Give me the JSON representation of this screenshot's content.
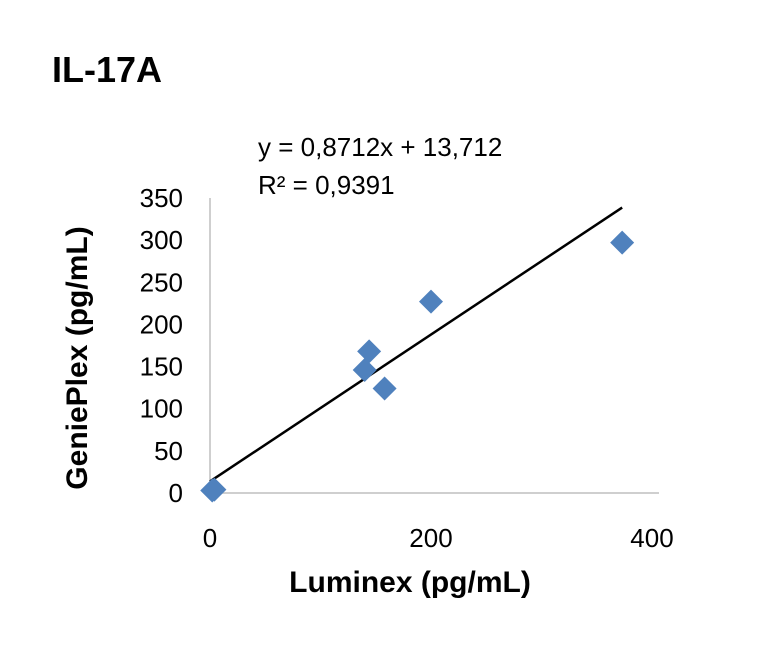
{
  "chart_data": {
    "type": "scatter",
    "title": "IL-17A",
    "xlabel": "Luminex  (pg/mL)",
    "ylabel": "GeniePlex  (pg/mL)",
    "xlim": [
      0,
      400
    ],
    "ylim": [
      0,
      350
    ],
    "xticks": [
      "0",
      "200",
      "400"
    ],
    "yticks": [
      "0",
      "50",
      "100",
      "150",
      "200",
      "250",
      "300",
      "350"
    ],
    "grid": false,
    "legend": "none",
    "series": [
      {
        "marker": "diamond",
        "color": "#4F81BD",
        "points": [
          {
            "x": 2,
            "y": 3
          },
          {
            "x": 4,
            "y": 4
          },
          {
            "x": 140,
            "y": 146
          },
          {
            "x": 144,
            "y": 168
          },
          {
            "x": 158,
            "y": 124
          },
          {
            "x": 200,
            "y": 227
          },
          {
            "x": 373,
            "y": 297
          }
        ]
      }
    ],
    "trendline": {
      "type": "linear",
      "slope": 0.8712,
      "intercept": 13.712,
      "x_range": [
        0,
        373
      ],
      "color": "#000000",
      "equation_label": "y = 0,8712x + 13,712",
      "r2_label": "R² = 0,9391"
    }
  }
}
